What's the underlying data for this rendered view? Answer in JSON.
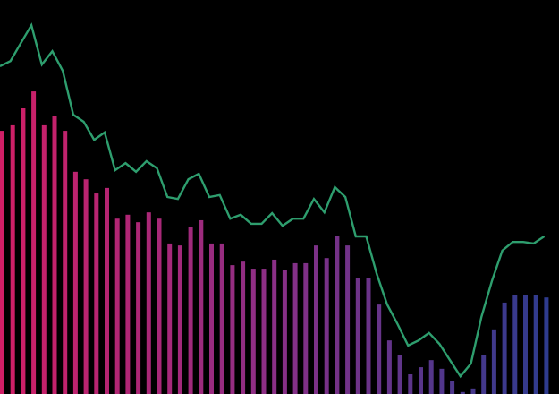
{
  "chart_data": {
    "type": "bar+line",
    "title": "",
    "xlabel": "",
    "ylabel": "",
    "ylim": [
      0,
      100
    ],
    "grid": false,
    "legend": "none",
    "colors": {
      "background": "#000000",
      "bar_start": "#d01f66",
      "bar_mid": "#8a2f86",
      "bar_end": "#2e3b8e",
      "line": "#2e9e6e"
    },
    "series": [
      {
        "type": "bar",
        "values": [
          66.8,
          68.2,
          72.5,
          76.8,
          68.2,
          70.5,
          66.8,
          56.4,
          54.5,
          50.9,
          52.3,
          44.5,
          45.5,
          43.6,
          46.1,
          44.5,
          38.2,
          37.7,
          42.3,
          44.1,
          38.2,
          38.2,
          32.7,
          33.6,
          31.8,
          31.8,
          34.1,
          31.4,
          33.2,
          33.2,
          37.7,
          34.5,
          40.0,
          37.7,
          29.5,
          29.5,
          22.7,
          13.6,
          10.0,
          5.0,
          6.8,
          8.6,
          6.4,
          3.2,
          0.5,
          1.4,
          10.0,
          16.4,
          23.2,
          25.0,
          25.0,
          25.0,
          24.5
        ]
      },
      {
        "type": "line",
        "values": [
          83.2,
          84.5,
          89.1,
          93.6,
          83.6,
          87.0,
          82.0,
          70.9,
          69.1,
          64.5,
          66.4,
          56.8,
          58.6,
          56.4,
          59.1,
          57.3,
          50.0,
          49.5,
          54.5,
          55.9,
          50.0,
          50.5,
          44.5,
          45.5,
          43.2,
          43.2,
          45.9,
          42.7,
          44.5,
          44.5,
          49.5,
          46.1,
          52.5,
          50.0,
          40.0,
          40.0,
          30.5,
          22.7,
          17.7,
          12.3,
          13.6,
          15.5,
          12.7,
          8.6,
          4.5,
          7.7,
          19.5,
          28.6,
          36.4,
          38.6,
          38.6,
          38.2,
          40.0
        ]
      }
    ]
  }
}
